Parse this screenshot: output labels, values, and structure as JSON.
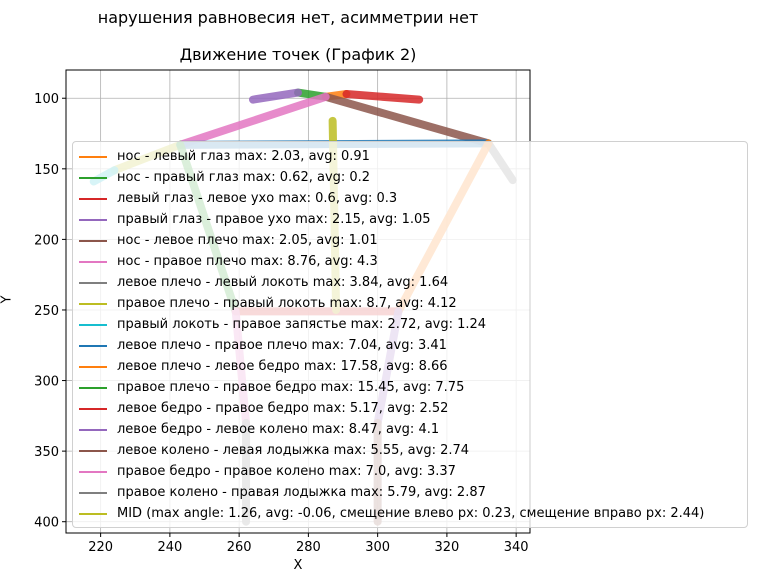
{
  "chart_data": {
    "type": "line",
    "suptitle": "нарушения равновесия нет, асимметрии нет",
    "title": "Движение точек (График 2)",
    "xlabel": "X",
    "ylabel": "Y",
    "xlim": [
      210,
      344
    ],
    "ylim": [
      408,
      80
    ],
    "y_inverted": true,
    "grid": true,
    "legend_placement": "center-right",
    "xticks": [
      220,
      240,
      260,
      280,
      300,
      320,
      340
    ],
    "yticks": [
      100,
      150,
      200,
      250,
      300,
      350,
      400
    ],
    "series": [
      {
        "name": "нос - левый глаз max: 2.03, avg: 0.91",
        "color": "#ff7f0e",
        "x": [
          285,
          291
        ],
        "y": [
          99,
          97
        ]
      },
      {
        "name": "нос - правый глаз max: 0.62, avg: 0.2",
        "color": "#2ca02c",
        "x": [
          285,
          277
        ],
        "y": [
          99,
          96
        ]
      },
      {
        "name": "левый глаз - левое ухо max: 0.6, avg: 0.3",
        "color": "#d62728",
        "x": [
          291,
          312
        ],
        "y": [
          97,
          101
        ]
      },
      {
        "name": "правый глаз - правое ухо max: 2.15, avg: 1.05",
        "color": "#9467bd",
        "x": [
          277,
          264
        ],
        "y": [
          96,
          101
        ]
      },
      {
        "name": "нос - левое плечо max: 2.05, avg: 1.01",
        "color": "#8c564b",
        "x": [
          285,
          332
        ],
        "y": [
          99,
          132
        ]
      },
      {
        "name": "нос - правое плечо max: 8.76, avg: 4.3",
        "color": "#e377c2",
        "x": [
          285,
          243
        ],
        "y": [
          99,
          133
        ]
      },
      {
        "name": "левое плечо - левый локоть max: 3.84, avg: 1.64",
        "color": "#7f7f7f",
        "x": [
          332,
          339
        ],
        "y": [
          132,
          158
        ]
      },
      {
        "name": "правое плечо - правый локоть max: 8.7, avg: 4.12",
        "color": "#bcbd22",
        "x": [
          243,
          224
        ],
        "y": [
          133,
          151
        ]
      },
      {
        "name": "правый локоть - правое запястье max: 2.72, avg: 1.24",
        "color": "#17becf",
        "x": [
          224,
          218
        ],
        "y": [
          151,
          159
        ]
      },
      {
        "name": "левое плечо - правое плечо max: 7.04, avg: 3.41",
        "color": "#1f77b4",
        "x": [
          332,
          243
        ],
        "y": [
          132,
          133
        ]
      },
      {
        "name": "левое плечо - левое бедро max: 17.58, avg: 8.66",
        "color": "#ff7f0e",
        "x": [
          332,
          306
        ],
        "y": [
          132,
          251
        ]
      },
      {
        "name": "правое плечо - правое бедро max: 15.45, avg: 7.75",
        "color": "#2ca02c",
        "x": [
          243,
          259
        ],
        "y": [
          133,
          251
        ]
      },
      {
        "name": "левое бедро - правое бедро max: 5.17, avg: 2.52",
        "color": "#d62728",
        "x": [
          306,
          259
        ],
        "y": [
          251,
          251
        ]
      },
      {
        "name": "левое бедро - левое колено max: 8.47, avg: 4.1",
        "color": "#9467bd",
        "x": [
          306,
          300
        ],
        "y": [
          251,
          330
        ]
      },
      {
        "name": "левое колено - левая лодыжка max: 5.55, avg: 2.74",
        "color": "#8c564b",
        "x": [
          300,
          300
        ],
        "y": [
          330,
          400
        ]
      },
      {
        "name": "правое бедро - правое колено max: 7.0, avg: 3.37",
        "color": "#e377c2",
        "x": [
          259,
          262
        ],
        "y": [
          251,
          330
        ]
      },
      {
        "name": "правое колено - правая лодыжка max: 5.79, avg: 2.87",
        "color": "#7f7f7f",
        "x": [
          262,
          262
        ],
        "y": [
          330,
          400
        ]
      },
      {
        "name": "MID (max angle: 1.26, avg: -0.06, смещение влево px: 0.23, смещение вправо px: 2.44)",
        "color": "#bcbd22",
        "x": [
          287,
          288
        ],
        "y": [
          116,
          250
        ]
      }
    ]
  }
}
